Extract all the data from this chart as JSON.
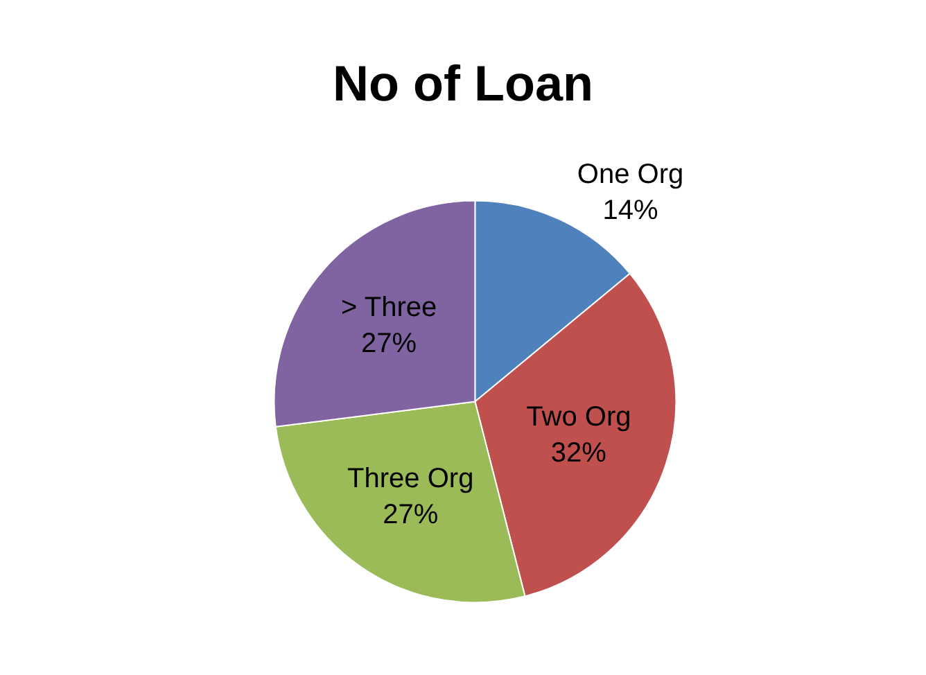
{
  "chart_data": {
    "type": "pie",
    "title": "No of Loan",
    "categories": [
      "One Org",
      "Two Org",
      "Three Org",
      "> Three"
    ],
    "values": [
      14,
      32,
      27,
      27
    ],
    "value_labels": [
      "14%",
      "32%",
      "27%",
      "27%"
    ],
    "colors": [
      "#4f81bd",
      "#c0504d",
      "#9bbb59",
      "#8064a2"
    ],
    "legend": false
  }
}
